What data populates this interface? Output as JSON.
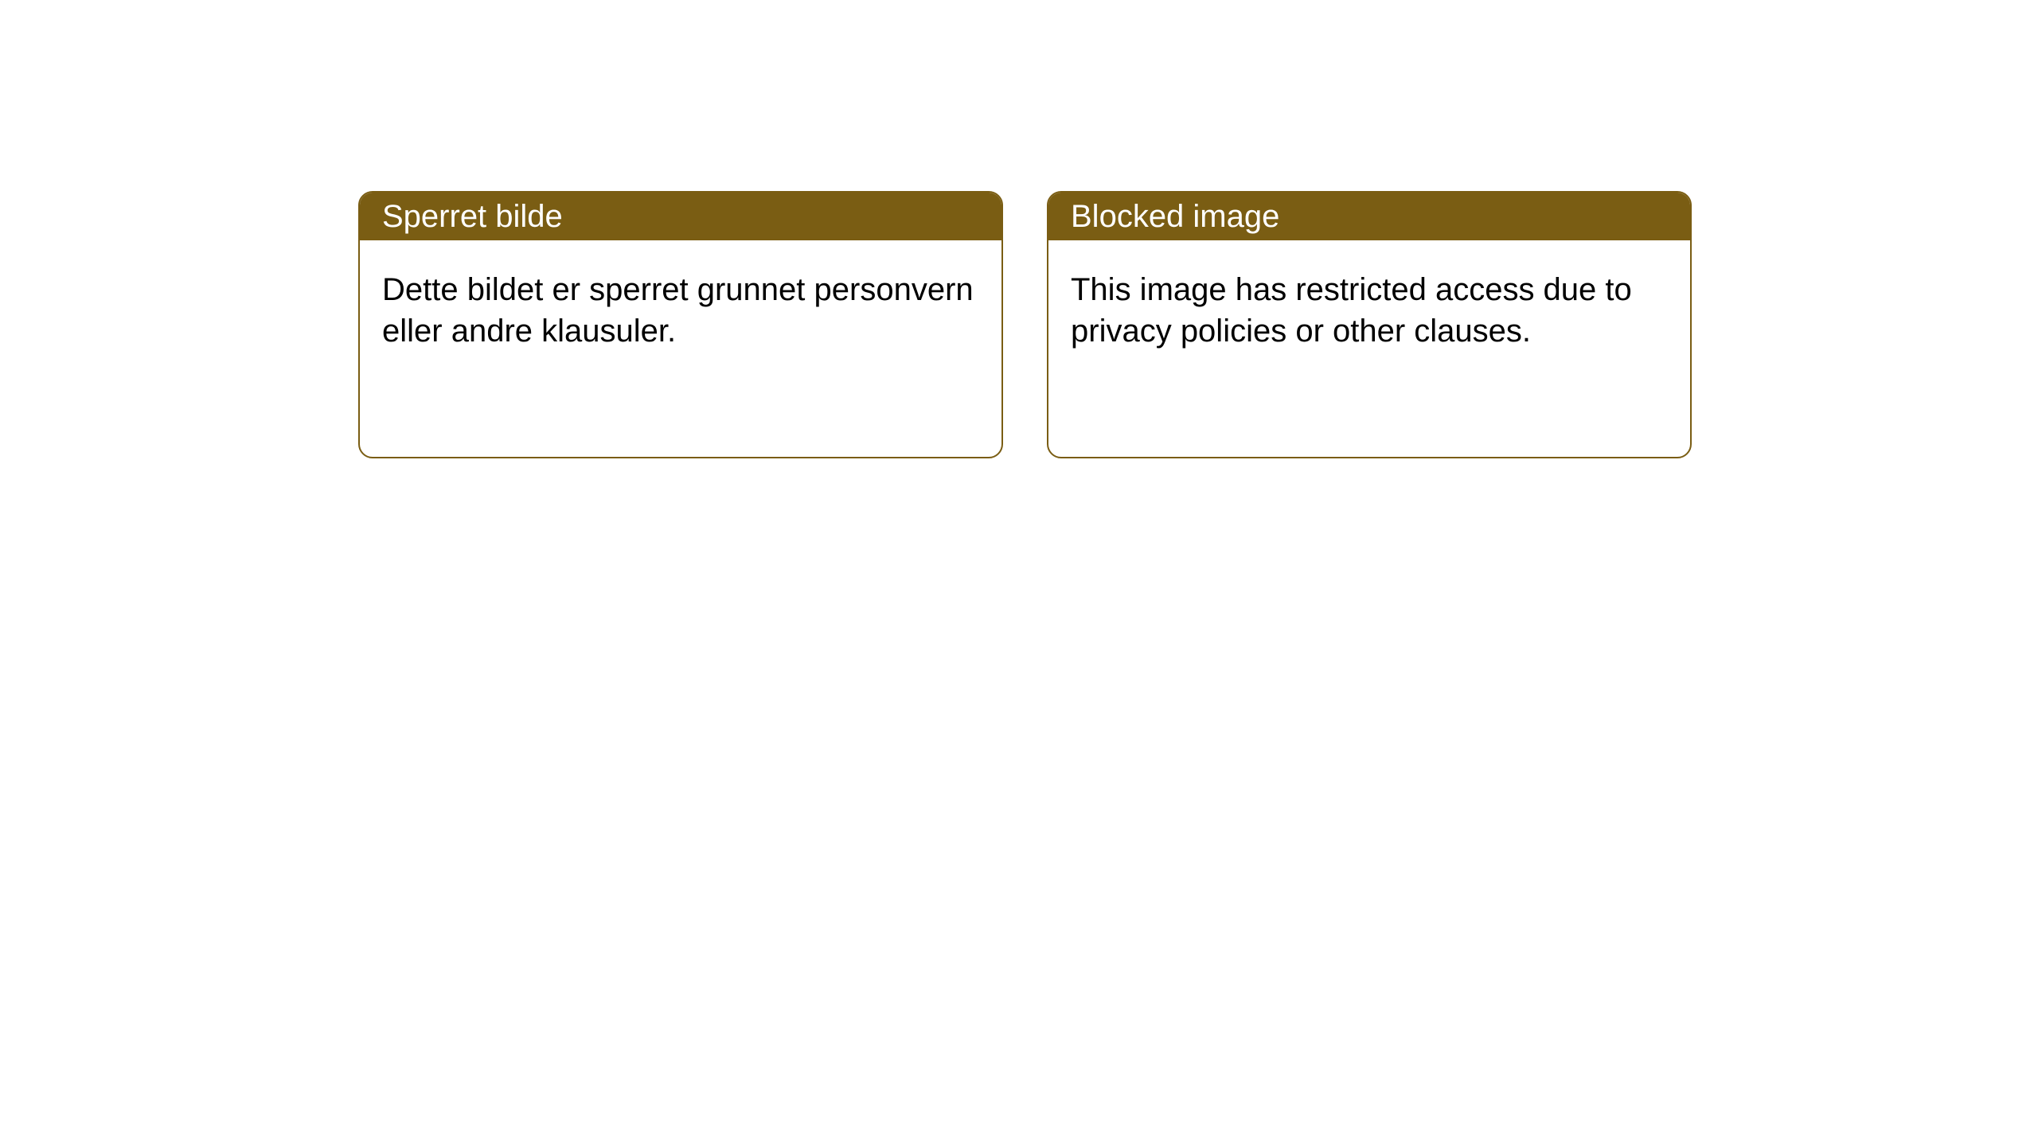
{
  "notices": [
    {
      "title": "Sperret bilde",
      "body": "Dette bildet er sperret grunnet personvern eller andre klausuler."
    },
    {
      "title": "Blocked image",
      "body": "This image has restricted access due to privacy policies or other clauses."
    }
  ],
  "style": {
    "header_bg": "#7a5d13",
    "header_text_color": "#ffffff",
    "border_color": "#7a5d13",
    "body_text_color": "#000000",
    "background_color": "#ffffff",
    "border_radius": 18,
    "title_fontsize": 40,
    "body_fontsize": 40
  }
}
